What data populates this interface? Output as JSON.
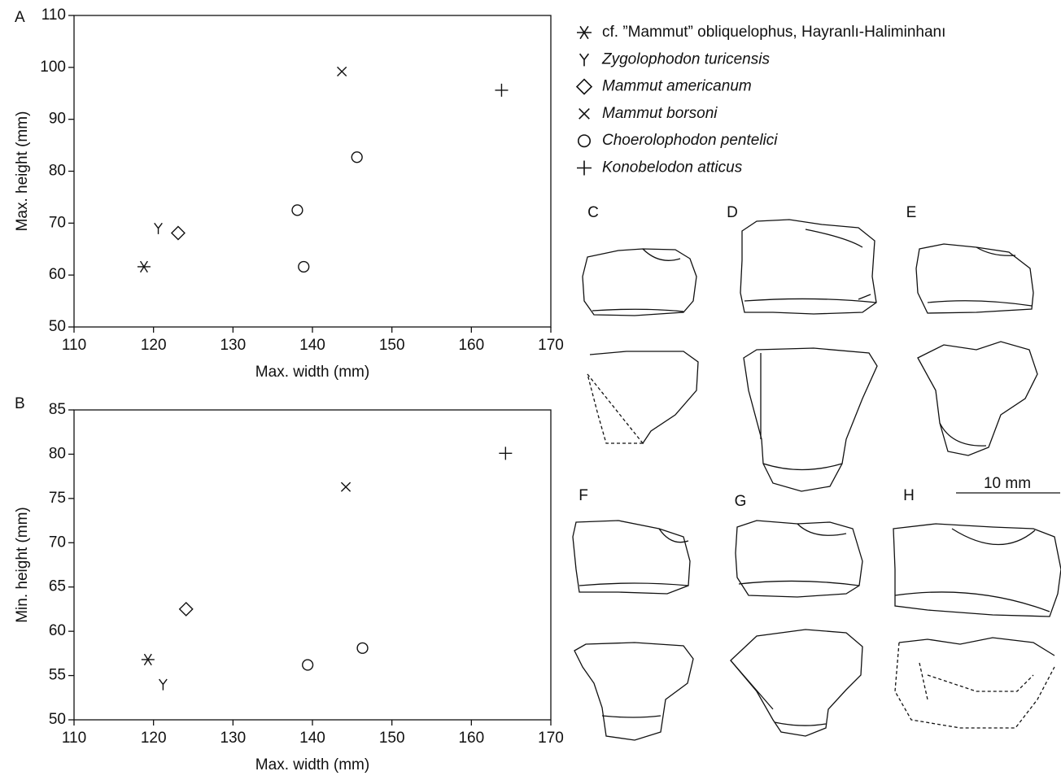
{
  "chart_data": [
    {
      "type": "scatter",
      "label": "A",
      "xlabel": "Max. width (mm)",
      "ylabel": "Max. height (mm)",
      "xlim": [
        110,
        170
      ],
      "ylim": [
        50,
        110
      ],
      "xticks": [
        110,
        120,
        130,
        140,
        150,
        160,
        170
      ],
      "yticks": [
        50,
        60,
        70,
        80,
        90,
        100,
        110
      ],
      "series": [
        {
          "name": "cf. ”Mammut” obliquelophus, Hayranlı-Haliminhanı",
          "italic": false,
          "marker": "asterisk",
          "x": [
            118.8
          ],
          "values": [
            61.6
          ]
        },
        {
          "name": "Zygolophodon turicensis",
          "italic": true,
          "marker": "y",
          "x": [
            120.6
          ],
          "values": [
            69
          ]
        },
        {
          "name": "Mammut americanum",
          "italic": true,
          "marker": "diamond",
          "x": [
            123.1
          ],
          "values": [
            68.1
          ]
        },
        {
          "name": "Mammut borsoni",
          "italic": true,
          "marker": "x",
          "x": [
            143.7
          ],
          "values": [
            99.2
          ]
        },
        {
          "name": "Choerolophodon pentelici",
          "italic": true,
          "marker": "circle",
          "x": [
            145.6,
            138.1,
            138.9
          ],
          "values": [
            82.7,
            72.5,
            61.6
          ]
        },
        {
          "name": "Konobelodon atticus",
          "italic": true,
          "marker": "plus",
          "x": [
            163.8
          ],
          "values": [
            95.6
          ]
        }
      ]
    },
    {
      "type": "scatter",
      "label": "B",
      "xlabel": "Max. width (mm)",
      "ylabel": "Min. height (mm)",
      "xlim": [
        110,
        170
      ],
      "ylim": [
        50,
        85
      ],
      "xticks": [
        110,
        120,
        130,
        140,
        150,
        160,
        170
      ],
      "yticks": [
        50,
        55,
        60,
        65,
        70,
        75,
        80,
        85
      ],
      "series": [
        {
          "marker": "asterisk",
          "x": [
            119.3
          ],
          "values": [
            56.8
          ]
        },
        {
          "marker": "y",
          "x": [
            121.2
          ],
          "values": [
            54
          ]
        },
        {
          "marker": "diamond",
          "x": [
            124.1
          ],
          "values": [
            62.5
          ]
        },
        {
          "marker": "x",
          "x": [
            144.2
          ],
          "values": [
            76.3
          ]
        },
        {
          "marker": "circle",
          "x": [
            146.3,
            139.4
          ],
          "values": [
            58.1,
            56.2
          ]
        },
        {
          "marker": "plus",
          "x": [
            164.3
          ],
          "values": [
            80.1
          ]
        }
      ]
    }
  ],
  "drawings": {
    "labels": [
      "C",
      "D",
      "E",
      "F",
      "G",
      "H"
    ],
    "scale_bar": "10 mm"
  }
}
